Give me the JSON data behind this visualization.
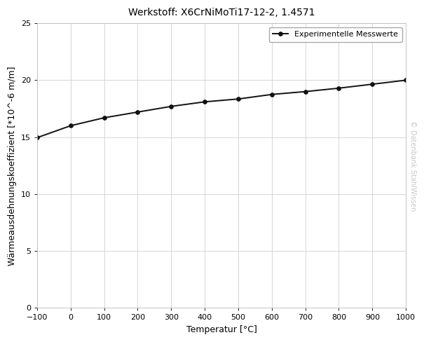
{
  "title": "Werkstoff: X6CrNiMoTi17-12-2, 1.4571",
  "xlabel": "Temperatur [°C]",
  "ylabel": "Wärmeausdehnungskoeffizient [*10^-6 m/m]",
  "legend_label": "Experimentelle Messwerte",
  "watermark": "© Datenbank StahlWissen",
  "x_data": [
    -100,
    0,
    100,
    200,
    300,
    400,
    500,
    600,
    700,
    800,
    900,
    1000
  ],
  "y_data": [
    14.95,
    16.0,
    16.7,
    17.2,
    17.7,
    18.1,
    18.35,
    18.75,
    19.0,
    19.3,
    19.65,
    20.0
  ],
  "xlim": [
    -100,
    1000
  ],
  "ylim": [
    0,
    25
  ],
  "xticks": [
    -100,
    0,
    100,
    200,
    300,
    400,
    500,
    600,
    700,
    800,
    900,
    1000
  ],
  "yticks": [
    0,
    5,
    10,
    15,
    20,
    25
  ],
  "line_color": "#111111",
  "marker": "o",
  "marker_size": 4,
  "marker_face_color": "#111111",
  "line_width": 1.4,
  "bg_color": "#ffffff",
  "plot_bg_color": "#ffffff",
  "grid_color": "#d0d0d0",
  "title_fontsize": 10,
  "label_fontsize": 9,
  "tick_fontsize": 8,
  "legend_fontsize": 8,
  "watermark_color": "#c8c8c8",
  "watermark_fontsize": 7
}
